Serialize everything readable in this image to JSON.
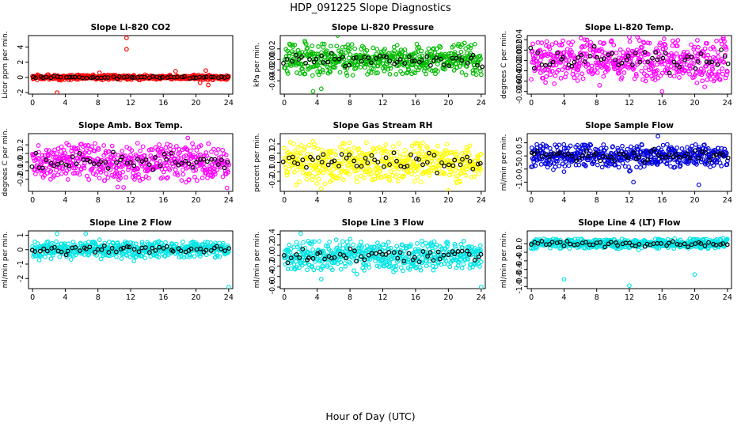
{
  "figure": {
    "title": "HDP_091225  Slope Diagnostics",
    "xlabel": "Hour of Day (UTC)"
  },
  "chart_data": [
    {
      "type": "scatter",
      "title": "Slope Li-820 CO2",
      "ylabel": "Licor ppm per min.",
      "color": "#ff0000",
      "xlim": [
        -0.5,
        24.5
      ],
      "xticks": [
        0,
        4,
        8,
        12,
        16,
        20,
        24
      ],
      "ylim": [
        -2.2,
        5.5
      ],
      "yticks": [
        -2,
        0,
        2,
        4
      ],
      "ytick_labels": [
        "-2",
        "0",
        "2",
        "4"
      ],
      "noise_sd": 0.12,
      "dense_half": 0.35,
      "seed": 11,
      "outliers": [
        [
          11.5,
          5.2
        ],
        [
          11.5,
          3.7
        ],
        [
          3,
          -2.0
        ],
        [
          17.5,
          0.8
        ],
        [
          21.2,
          0.9
        ],
        [
          8.2,
          0.6
        ],
        [
          20.5,
          -0.7
        ],
        [
          21.5,
          -1.0
        ]
      ]
    },
    {
      "type": "scatter",
      "title": "Slope Li-820 Pressure",
      "ylabel": "kPa per min.",
      "color": "#00bb00",
      "xlim": [
        -0.5,
        24.5
      ],
      "xticks": [
        0,
        4,
        8,
        12,
        16,
        20,
        24
      ],
      "ylim": [
        -0.065,
        0.045
      ],
      "yticks": [
        -0.04,
        -0.02,
        0.0,
        0.02
      ],
      "ytick_labels": [
        "-0.04",
        "-0.02",
        "0.00",
        "0.02"
      ],
      "noise_sd": 0.012,
      "dense_half": 0.03,
      "seed": 23,
      "outliers": [
        [
          2.5,
          0.035
        ],
        [
          6.5,
          0.045
        ],
        [
          3.5,
          -0.06
        ],
        [
          4.5,
          -0.055
        ]
      ]
    },
    {
      "type": "scatter",
      "title": "Slope Li-820 Temp.",
      "ylabel": "degrees C per min.",
      "color": "#ff00ff",
      "xlim": [
        -0.5,
        24.5
      ],
      "xticks": [
        0,
        4,
        8,
        12,
        16,
        20,
        24
      ],
      "ylim": [
        -0.0065,
        0.0048
      ],
      "yticks": [
        -0.006,
        -0.004,
        -0.002,
        0.0,
        0.002,
        0.004
      ],
      "ytick_labels": [
        "-0.006",
        "-0.004",
        "-0.002",
        "0.000",
        "0.002",
        "0.004"
      ],
      "noise_sd": 0.0018,
      "dense_half": 0.004,
      "seed": 37,
      "outliers": [
        [
          12,
          0.0045
        ],
        [
          13,
          0.0045
        ],
        [
          16,
          -0.006
        ],
        [
          21.5,
          0.0033
        ]
      ]
    },
    {
      "type": "scatter",
      "title": "Slope Amb. Box Temp.",
      "ylabel": "degrees C per min.",
      "color": "#ff00ff",
      "xlim": [
        -0.5,
        24.5
      ],
      "xticks": [
        0,
        4,
        8,
        12,
        16,
        20,
        24
      ],
      "ylim": [
        -0.34,
        0.33
      ],
      "yticks": [
        -0.2,
        -0.1,
        0.0,
        0.1,
        0.2
      ],
      "ytick_labels": [
        "-0.2",
        "-0.1",
        "0.0",
        "0.1",
        "0.2"
      ],
      "noise_sd": 0.09,
      "dense_half": 0.22,
      "seed": 41,
      "outliers": [
        [
          23.8,
          -0.3
        ],
        [
          19,
          0.28
        ]
      ]
    },
    {
      "type": "scatter",
      "title": "Slope Gas Stream RH",
      "ylabel": "percent per min.",
      "color": "#ffff00",
      "xlim": [
        -0.5,
        24.5
      ],
      "xticks": [
        0,
        4,
        8,
        12,
        16,
        20,
        24
      ],
      "ylim": [
        -0.31,
        0.31
      ],
      "yticks": [
        -0.2,
        -0.1,
        0.0,
        0.1,
        0.2
      ],
      "ytick_labels": [
        "-0.2",
        "-0.1",
        "0.0",
        "0.1",
        "0.2"
      ],
      "noise_sd": 0.09,
      "dense_half": 0.22,
      "seed": 53,
      "outliers": [
        [
          20,
          -0.3
        ],
        [
          4.5,
          -0.28
        ]
      ]
    },
    {
      "type": "scatter",
      "title": "Slope Sample Flow",
      "ylabel": "ml/min per min.",
      "color": "#0000dd",
      "xlim": [
        -0.5,
        24.5
      ],
      "xticks": [
        0,
        4,
        8,
        12,
        16,
        20,
        24
      ],
      "ylim": [
        -1.35,
        0.85
      ],
      "yticks": [
        -1.0,
        -0.5,
        0.0,
        0.5
      ],
      "ytick_labels": [
        "-1.0",
        "-0.5",
        "0.0",
        "0.5"
      ],
      "noise_sd": 0.18,
      "dense_half": 0.45,
      "seed": 67,
      "outliers": [
        [
          20.5,
          -1.1
        ],
        [
          12.5,
          -1.0
        ],
        [
          15.5,
          0.75
        ],
        [
          4,
          -0.6
        ]
      ]
    },
    {
      "type": "scatter",
      "title": "Slope Line 2 Flow",
      "ylabel": "ml/min per min.",
      "color": "#00e5e5",
      "xlim": [
        -0.5,
        24.5
      ],
      "xticks": [
        0,
        4,
        8,
        12,
        16,
        20,
        24
      ],
      "ylim": [
        -2.7,
        1.3
      ],
      "yticks": [
        -2,
        -1,
        0,
        1
      ],
      "ytick_labels": [
        "-2",
        "-1",
        "0",
        "1"
      ],
      "noise_sd": 0.25,
      "dense_half": 0.55,
      "seed": 71,
      "outliers": [
        [
          24,
          -2.6
        ],
        [
          3,
          1.1
        ],
        [
          6.5,
          1.1
        ]
      ]
    },
    {
      "type": "scatter",
      "title": "Slope Line 3 Flow",
      "ylabel": "ml/min per min.",
      "color": "#00e5e5",
      "xlim": [
        -0.5,
        24.5
      ],
      "xticks": [
        0,
        4,
        8,
        12,
        16,
        20,
        24
      ],
      "ylim": [
        -0.63,
        0.47
      ],
      "yticks": [
        -0.6,
        -0.4,
        -0.2,
        0.0,
        0.2,
        0.4
      ],
      "ytick_labels": [
        "-0.6",
        "-0.4",
        "-0.2",
        "0.0",
        "0.2",
        "0.4"
      ],
      "noise_sd": 0.12,
      "dense_half": 0.28,
      "seed": 83,
      "outliers": [
        [
          24,
          -0.6
        ],
        [
          2,
          0.42
        ],
        [
          4.5,
          -0.45
        ]
      ]
    },
    {
      "type": "scatter",
      "title": "Slope Line 4 (LT) Flow",
      "ylabel": "ml/min per min.",
      "color": "#00e5e5",
      "xlim": [
        -0.5,
        24.5
      ],
      "xticks": [
        0,
        4,
        8,
        12,
        16,
        20,
        24
      ],
      "ylim": [
        -1.05,
        0.3
      ],
      "yticks": [
        -1.0,
        -0.8,
        -0.6,
        -0.4,
        -0.2,
        0.0
      ],
      "ytick_labels": [
        "-1.0",
        "-0.8",
        "-0.6",
        "-0.4",
        "-0.2",
        "0.0"
      ],
      "noise_sd": 0.05,
      "dense_half": 0.12,
      "seed": 97,
      "outliers": [
        [
          4,
          -0.83
        ],
        [
          12,
          -0.98
        ],
        [
          20,
          -0.72
        ]
      ]
    }
  ]
}
